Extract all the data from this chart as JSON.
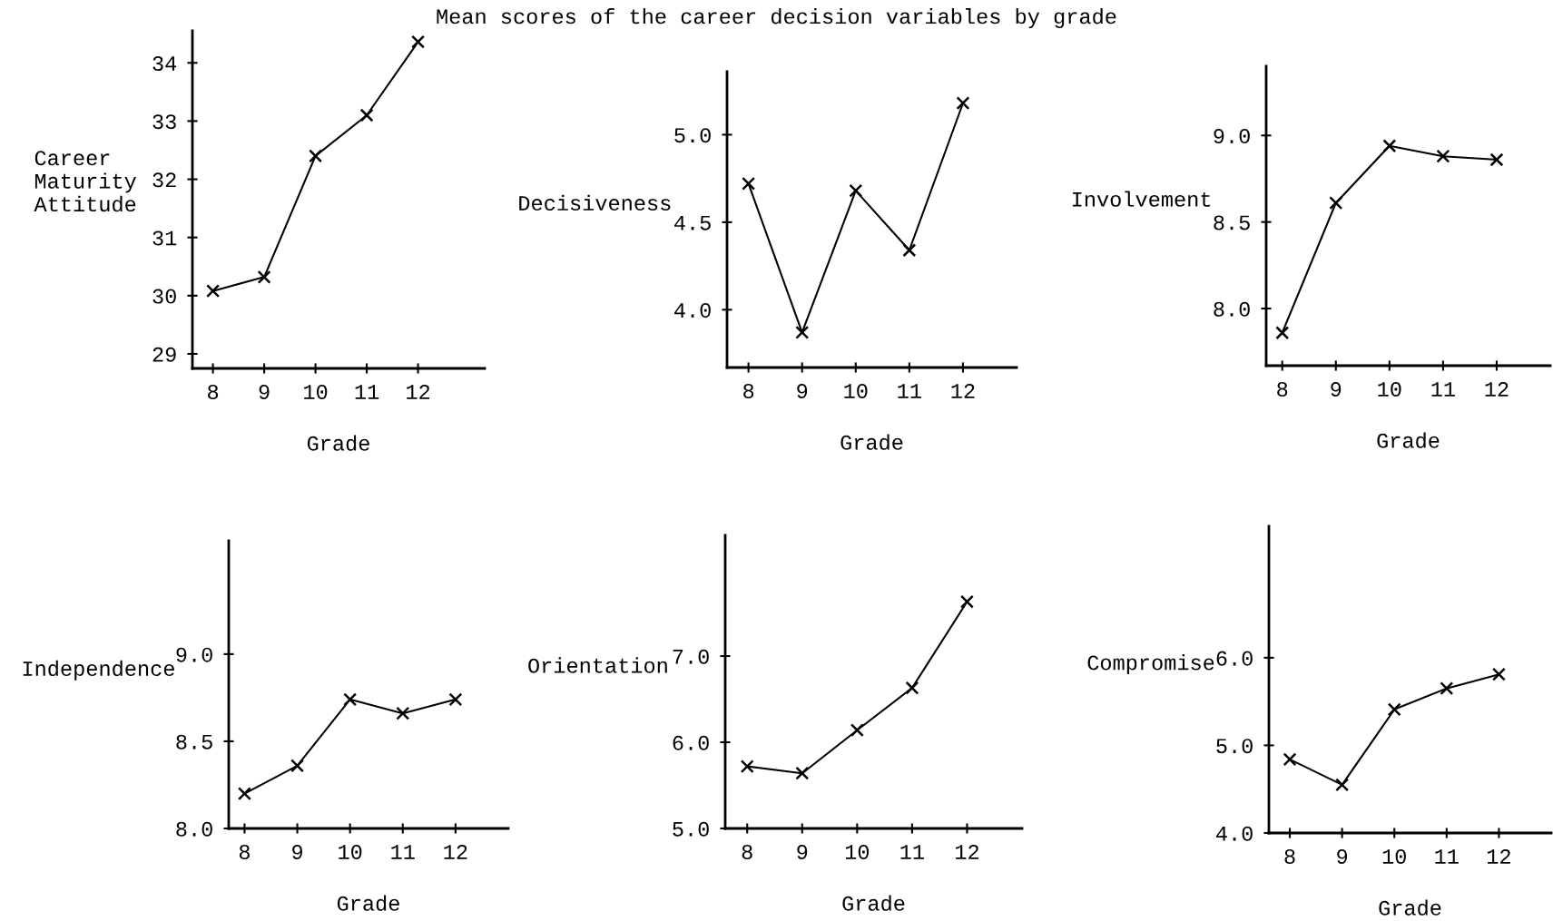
{
  "chart_data": [
    {
      "type": "line",
      "title": "Mean scores of the career decision variables by grade",
      "xlabel": "Grade",
      "ylabel": "Career\nMaturity\nAttitude",
      "x": [
        8,
        9,
        10,
        11,
        12
      ],
      "values": [
        30.08,
        30.32,
        32.4,
        33.1,
        34.36
      ],
      "xlim": [
        7.6,
        13.3
      ],
      "xticks": [
        8,
        9,
        10,
        11,
        12
      ],
      "ylim": [
        28.75,
        34.55
      ],
      "yticks": [
        29,
        30,
        31,
        32,
        33,
        34
      ],
      "marker": "cross",
      "color": "#000000"
    },
    {
      "type": "line",
      "xlabel": "Grade",
      "ylabel": "Decisiveness",
      "x": [
        8,
        9,
        10,
        11,
        12
      ],
      "values": [
        4.72,
        3.87,
        4.68,
        4.34,
        5.18
      ],
      "xlim": [
        7.6,
        13.0
      ],
      "xticks": [
        8,
        9,
        10,
        11,
        12
      ],
      "ylim": [
        3.67,
        5.36
      ],
      "yticks": [
        {
          "value": 4,
          "label": "4.0"
        },
        4.5,
        {
          "value": 5,
          "label": "5.0"
        }
      ],
      "marker": "cross",
      "color": "#000000"
    },
    {
      "type": "line",
      "xlabel": "Grade",
      "ylabel": "Involvement",
      "x": [
        8,
        9,
        10,
        11,
        12
      ],
      "values": [
        7.86,
        8.61,
        8.94,
        8.88,
        8.86
      ],
      "xlim": [
        7.7,
        13.0
      ],
      "xticks": [
        8,
        9,
        10,
        11,
        12
      ],
      "ylim": [
        7.67,
        9.4
      ],
      "yticks": [
        {
          "value": 8,
          "label": "8.0"
        },
        8.5,
        {
          "value": 9,
          "label": "9.0"
        }
      ],
      "marker": "cross",
      "color": "#000000"
    },
    {
      "type": "line",
      "xlabel": "Grade",
      "ylabel": "Independence",
      "x": [
        8,
        9,
        10,
        11,
        12
      ],
      "values": [
        8.2,
        8.36,
        8.74,
        8.66,
        8.74
      ],
      "xlim": [
        7.7,
        13.0
      ],
      "xticks": [
        8,
        9,
        10,
        11,
        12
      ],
      "ylim": [
        8.0,
        9.65
      ],
      "yticks": [
        {
          "value": 8,
          "label": "8.0"
        },
        8.5,
        {
          "value": 9,
          "label": "9.0"
        }
      ],
      "marker": "cross",
      "color": "#000000"
    },
    {
      "type": "line",
      "xlabel": "Grade",
      "ylabel": "Orientation",
      "x": [
        8,
        9,
        10,
        11,
        12
      ],
      "values": [
        5.72,
        5.64,
        6.14,
        6.63,
        7.63
      ],
      "xlim": [
        7.6,
        13.0
      ],
      "xticks": [
        8,
        9,
        10,
        11,
        12
      ],
      "ylim": [
        5.0,
        8.4
      ],
      "yticks": [
        {
          "value": 5,
          "label": "5.0"
        },
        {
          "value": 6,
          "label": "6.0"
        },
        {
          "value": 7,
          "label": "7.0"
        }
      ],
      "marker": "cross",
      "color": "#000000"
    },
    {
      "type": "line",
      "xlabel": "Grade",
      "ylabel": "Compromise",
      "x": [
        8,
        9,
        10,
        11,
        12
      ],
      "values": [
        4.84,
        4.55,
        5.41,
        5.65,
        5.81
      ],
      "xlim": [
        7.6,
        13.0
      ],
      "xticks": [
        8,
        9,
        10,
        11,
        12
      ],
      "ylim": [
        4.0,
        7.5
      ],
      "yticks": [
        {
          "value": 4,
          "label": "4.0"
        },
        {
          "value": 5,
          "label": "5.0"
        },
        {
          "value": 6,
          "label": "6.0"
        }
      ],
      "marker": "cross",
      "color": "#000000"
    }
  ]
}
